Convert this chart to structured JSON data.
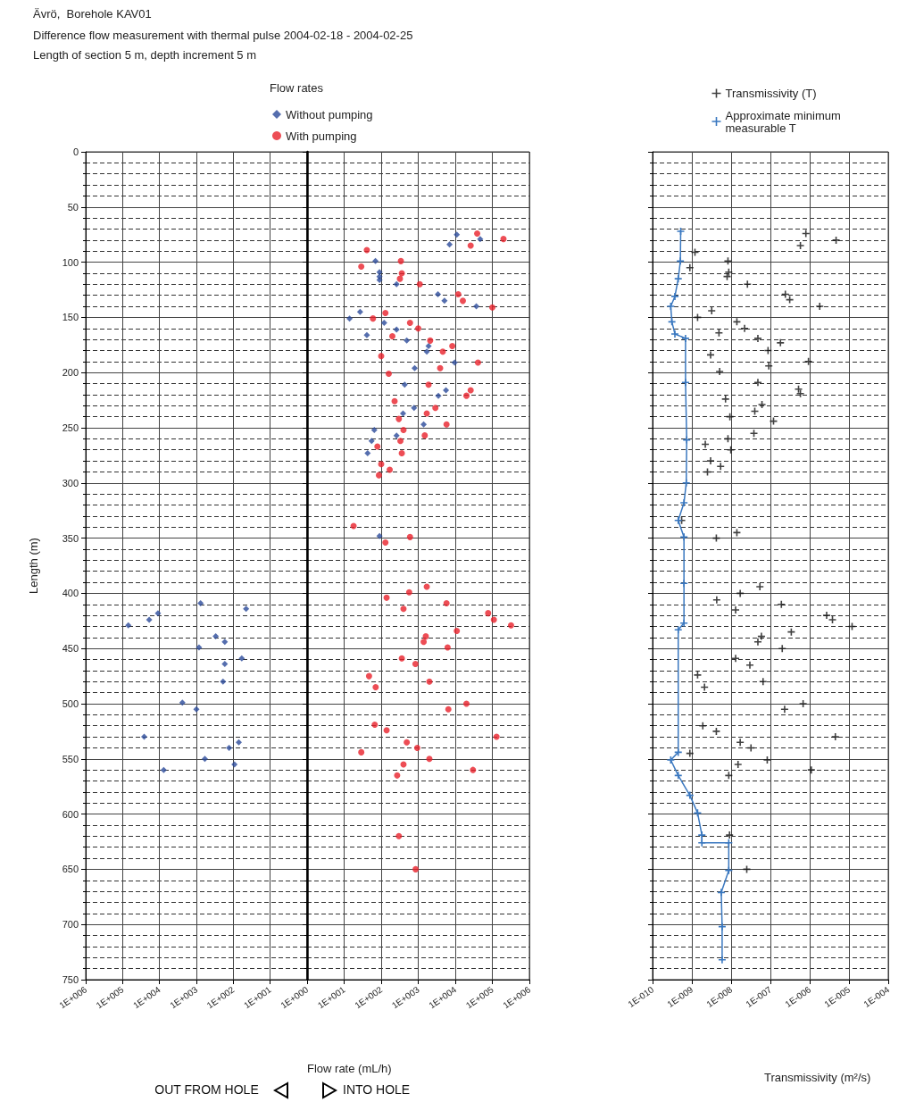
{
  "chart_data": [
    {
      "type": "scatter",
      "title": "Ävrö,  Borehole KAV01",
      "subtitle": "Difference flow measurement with thermal pulse 2004-02-18 - 2004-02-25\nLength of section 5 m, depth increment 5 m",
      "ylabel": "Length (m)",
      "annotations": [
        "OUT FROM HOLE"
      ],
      "log": "x",
      "grid": true,
      "xlim": [
        1000000,
        1
      ],
      "xticks": [
        {
          "value": 1000000,
          "label": "1E+006"
        },
        {
          "value": 100000,
          "label": "1E+005"
        },
        {
          "value": 10000,
          "label": "1E+004"
        },
        {
          "value": 1000,
          "label": "1E+003"
        },
        {
          "value": 100,
          "label": "1E+002"
        },
        {
          "value": 10,
          "label": "1E+001"
        },
        {
          "value": 1,
          "label": null
        }
      ],
      "ylim": [
        750,
        0
      ],
      "yticks": [
        0,
        50,
        100,
        150,
        200,
        250,
        300,
        350,
        400,
        450,
        500,
        550,
        600,
        650,
        700,
        750
      ],
      "series": [
        {
          "color": "#2b4a9a",
          "marker": "diamond",
          "x": [
            70000,
            19000,
            11000,
            770,
            45,
            300,
            170,
            850,
            59,
            170,
            190,
            2400,
            1000,
            26000,
            130,
            71,
            590,
            93,
            7700
          ],
          "values": [
            429,
            424,
            418,
            409,
            414,
            439,
            444,
            449,
            459,
            464,
            480,
            499,
            505,
            530,
            540,
            535,
            550,
            555,
            560
          ]
        }
      ]
    },
    {
      "type": "scatter",
      "xlabel": "Flow rate (mL/h)",
      "legend_title": "Flow rates",
      "legend": "top",
      "annotations": [
        "INTO HOLE"
      ],
      "log": "x",
      "grid": true,
      "tick_labels": "x",
      "xlim": [
        1,
        1000000
      ],
      "xticks": [
        {
          "value": 1,
          "label": "1E+000"
        },
        {
          "value": 10,
          "label": "1E+001"
        },
        {
          "value": 100,
          "label": "1E+002"
        },
        {
          "value": 1000,
          "label": "1E+003"
        },
        {
          "value": 10000,
          "label": "1E+004"
        },
        {
          "value": 100000,
          "label": "1E+005"
        },
        {
          "value": 1000000,
          "label": "1E+006"
        }
      ],
      "ylim": [
        750,
        0
      ],
      "yticks": [
        0,
        50,
        100,
        150,
        200,
        250,
        300,
        350,
        400,
        450,
        500,
        550,
        600,
        650,
        700,
        750
      ],
      "series": [
        {
          "name": "Without pumping",
          "color": "#2b4a9a",
          "marker": "diamond",
          "x": [
            11000,
            7000,
            47000,
            70,
            90,
            90,
            90,
            260,
            3400,
            5100,
            37000,
            14,
            27,
            120,
            260,
            41,
            490,
            1900,
            1700,
            9600,
            800,
            430,
            5600,
            3500,
            770,
            390,
            1400,
            65,
            260,
            55,
            43,
            90
          ],
          "values": [
            75,
            84,
            79,
            99,
            109,
            113,
            116,
            120,
            129,
            135,
            140,
            151,
            145,
            155,
            161,
            166,
            171,
            176,
            181,
            191,
            196,
            211,
            216,
            221,
            232,
            237,
            247,
            252,
            257,
            262,
            273,
            348
          ]
        },
        {
          "name": "With pumping",
          "color": "#e8202a",
          "marker": "circle",
          "x": [
            39000,
            26000,
            200000,
            41,
            29,
            340,
            360,
            320,
            1100,
            12000,
            16000,
            100000,
            130,
            60,
            600,
            1000,
            200,
            2100,
            4600,
            8300,
            100,
            41000,
            3900,
            160,
            1900,
            26000,
            20000,
            230,
            300,
            1700,
            2900,
            5800,
            400,
            1500,
            330,
            79,
            360,
            100,
            170,
            87,
            18,
            600,
            130,
            1700,
            570,
            140,
            5800,
            400,
            77000,
            110000,
            320000,
            11000,
            1600,
            1400,
            6200,
            360,
            840,
            47,
            71,
            2000,
            20000,
            6500,
            67,
            140,
            130000,
            490,
            940,
            29,
            2000,
            400,
            30000,
            270,
            300,
            850
          ],
          "values": [
            74,
            85,
            79,
            89,
            104,
            99,
            110,
            115,
            120,
            129,
            135,
            141,
            146,
            151,
            155,
            160,
            167,
            171,
            181,
            176,
            185,
            191,
            196,
            201,
            211,
            216,
            221,
            226,
            242,
            237,
            232,
            247,
            252,
            257,
            262,
            267,
            273,
            283,
            288,
            293,
            339,
            349,
            354,
            394,
            399,
            404,
            409,
            414,
            418,
            424,
            429,
            434,
            439,
            444,
            449,
            459,
            464,
            475,
            485,
            480,
            500,
            505,
            519,
            524,
            530,
            535,
            540,
            544,
            550,
            555,
            560,
            565,
            620,
            650
          ]
        }
      ]
    },
    {
      "type": "scatter",
      "xlabel": "Transmissivity (m²/s)",
      "legend": "top",
      "log": "x",
      "grid": true,
      "tick_labels": "x",
      "xlim": [
        1e-10,
        0.0001
      ],
      "xticks": [
        {
          "value": 1e-10,
          "label": "1E-010"
        },
        {
          "value": 1e-09,
          "label": "1E-009"
        },
        {
          "value": 1e-08,
          "label": "1E-008"
        },
        {
          "value": 1e-07,
          "label": "1E-007"
        },
        {
          "value": 1e-06,
          "label": "1E-006"
        },
        {
          "value": 1e-05,
          "label": "1E-005"
        },
        {
          "value": 0.0001,
          "label": "1E-004"
        }
      ],
      "ylim": [
        750,
        0
      ],
      "yticks": [
        {
          "value": 0,
          "label": null
        },
        {
          "value": 50,
          "label": null
        },
        {
          "value": 100,
          "label": null
        },
        {
          "value": 150,
          "label": null
        },
        {
          "value": 200,
          "label": null
        },
        {
          "value": 250,
          "label": null
        },
        {
          "value": 300,
          "label": null
        },
        {
          "value": 350,
          "label": null
        },
        {
          "value": 400,
          "label": null
        },
        {
          "value": 450,
          "label": null
        },
        {
          "value": 500,
          "label": null
        },
        {
          "value": 550,
          "label": null
        },
        {
          "value": 600,
          "label": null
        },
        {
          "value": 650,
          "label": null
        },
        {
          "value": 700,
          "label": null
        },
        {
          "value": 750,
          "label": null
        }
      ],
      "series": [
        {
          "name": "Transmissivity (T)",
          "color": "#111111",
          "marker": "cross",
          "x": [
            8e-07,
            4.7e-06,
            5.8e-07,
            1.2e-09,
            8.9e-10,
            8.3e-09,
            8.7e-09,
            7.9e-09,
            2.6e-08,
            2.4e-07,
            3.1e-07,
            1.8e-06,
            3.2e-09,
            1.4e-09,
            1.4e-08,
            2.2e-08,
            4.9e-09,
            4.8e-08,
            1.8e-07,
            3e-09,
            8.7e-08,
            9.1e-08,
            9.3e-07,
            5.1e-09,
            4.8e-08,
            5.2e-07,
            5.8e-07,
            7.2e-09,
            4e-08,
            6.1e-08,
            9.3e-09,
            1.2e-07,
            3.8e-08,
            8.3e-09,
            2.2e-09,
            9.8e-09,
            3e-09,
            5.4e-09,
            2.5e-09,
            5.5e-10,
            1.4e-08,
            4.2e-09,
            5.4e-08,
            1.7e-08,
            4.3e-09,
            1.9e-07,
            1.3e-08,
            2.7e-06,
            3.8e-06,
            1.2e-05,
            3.4e-07,
            5.9e-08,
            4.8e-08,
            2e-07,
            1.3e-08,
            3e-08,
            1.4e-09,
            2.1e-09,
            6.5e-08,
            6.8e-07,
            2.3e-07,
            1.9e-09,
            4.2e-09,
            4.5e-06,
            1.7e-08,
            3.2e-08,
            8.9e-10,
            8.3e-08,
            1.5e-08,
            1.1e-06,
            8.7e-09,
            9.1e-09,
            2.5e-08
          ],
          "values": [
            74,
            80,
            85,
            91,
            105,
            99,
            109,
            113,
            120,
            129,
            134,
            140,
            144,
            150,
            154,
            160,
            164,
            169,
            173,
            184,
            180,
            194,
            190,
            199,
            209,
            215,
            219,
            224,
            235,
            229,
            240,
            244,
            255,
            260,
            265,
            270,
            280,
            285,
            290,
            334,
            345,
            350,
            394,
            400,
            406,
            410,
            415,
            420,
            424,
            430,
            435,
            439,
            444,
            450,
            459,
            465,
            474,
            485,
            480,
            500,
            505,
            520,
            525,
            530,
            535,
            540,
            545,
            551,
            555,
            560,
            565,
            619,
            650
          ]
        },
        {
          "name": "Approximate minimum measurable T",
          "type": "line",
          "color": "#3a78c0",
          "marker": "cross",
          "x": [
            5.2e-10,
            5.1e-10,
            4.5e-10,
            3.7e-10,
            2.9e-10,
            3.1e-10,
            3.7e-10,
            6.9e-10,
            6.9e-10,
            7.4e-10,
            7.2e-10,
            6.3e-10,
            4.5e-10,
            6.3e-10,
            6.3e-10,
            6.3e-10,
            4.5e-10,
            4.5e-10,
            2.9e-10,
            4.5e-10,
            8.9e-10,
            1.4e-09,
            1.8e-09,
            1.8e-09,
            8.7e-09,
            8.7e-09,
            5.6e-09,
            5.9e-09,
            5.9e-09
          ],
          "values": [
            72,
            99,
            115,
            131,
            140,
            154,
            165,
            169,
            209,
            261,
            300,
            318,
            334,
            349,
            391,
            427,
            433,
            544,
            551,
            565,
            583,
            599,
            619,
            626,
            626,
            651,
            671,
            702,
            732
          ]
        }
      ]
    }
  ]
}
